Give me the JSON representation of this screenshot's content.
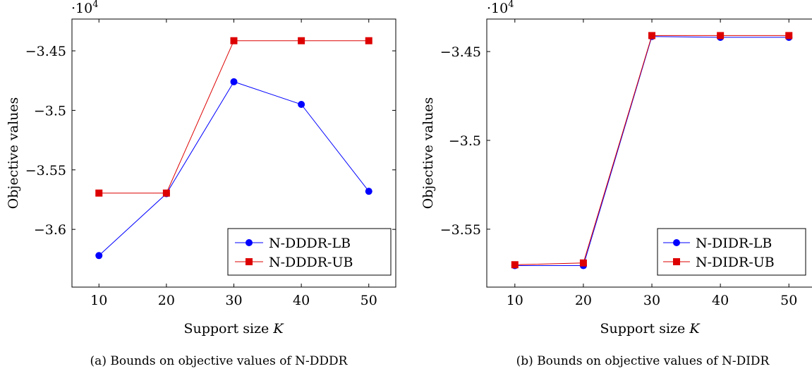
{
  "chart_data": [
    {
      "type": "line",
      "caption": "(a) Bounds on objective values of N-DDDR",
      "xlabel": "Support size",
      "xlabel_var": "K",
      "ylabel": "Objective values",
      "y_multiplier": "·10",
      "y_multiplier_exp": "4",
      "x": [
        10,
        20,
        30,
        40,
        50
      ],
      "xticks": [
        10,
        20,
        30,
        40,
        50
      ],
      "xtick_labels": [
        "10",
        "20",
        "30",
        "40",
        "50"
      ],
      "yticks": [
        -3.6,
        -3.55,
        -3.5,
        -3.45
      ],
      "ytick_labels": [
        "−3.6",
        "−3.55",
        "−3.5",
        "−3.45"
      ],
      "xlim": [
        6,
        54
      ],
      "ylim": [
        -3.6485,
        -3.4233
      ],
      "grid": false,
      "legend_position": "bottom-right",
      "series": [
        {
          "name": "N-DDDR-LB",
          "color": "#0000ff",
          "marker": "circle",
          "values": [
            -3.622,
            -3.57,
            -3.476,
            -3.495,
            -3.568
          ]
        },
        {
          "name": "N-DDDR-UB",
          "color": "#dd0000",
          "marker": "square",
          "values": [
            -3.5695,
            -3.5695,
            -3.4415,
            -3.4415,
            -3.4415
          ]
        }
      ]
    },
    {
      "type": "line",
      "caption": "(b) Bounds on objective values of N-DIDR",
      "xlabel": "Support size",
      "xlabel_var": "K",
      "ylabel": "Objective values",
      "y_multiplier": "·10",
      "y_multiplier_exp": "4",
      "x": [
        10,
        20,
        30,
        40,
        50
      ],
      "xticks": [
        10,
        20,
        30,
        40,
        50
      ],
      "xtick_labels": [
        "10",
        "20",
        "30",
        "40",
        "50"
      ],
      "yticks": [
        -3.55,
        -3.5,
        -3.45
      ],
      "ytick_labels": [
        "−3.55",
        "−3.5",
        "−3.45"
      ],
      "xlim": [
        5.9,
        54.3
      ],
      "ylim": [
        -3.5826,
        -3.4317
      ],
      "grid": false,
      "legend_position": "bottom-right",
      "series": [
        {
          "name": "N-DIDR-LB",
          "color": "#0000ff",
          "marker": "circle",
          "values": [
            -3.5705,
            -3.5705,
            -3.4415,
            -3.442,
            -3.442
          ]
        },
        {
          "name": "N-DIDR-UB",
          "color": "#dd0000",
          "marker": "square",
          "values": [
            -3.57,
            -3.569,
            -3.441,
            -3.441,
            -3.441
          ]
        }
      ]
    }
  ]
}
